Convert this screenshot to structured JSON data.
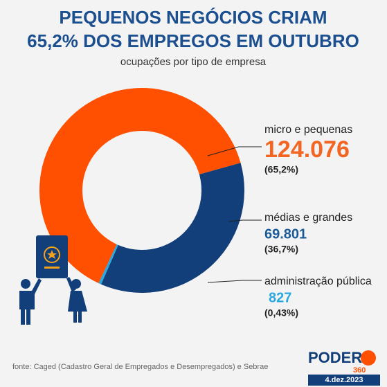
{
  "chart_data": {
    "type": "donut",
    "title": [
      "PEQUENOS NEGÓCIOS CRIAM",
      "65,2% DOS EMPREGOS EM OUTUBRO"
    ],
    "subtitle": "ocupações por tipo de empresa",
    "categories": [
      "micro e pequenas",
      "médias e grandes",
      "administração pública"
    ],
    "values": [
      124076,
      69801,
      827
    ],
    "value_labels": [
      "124.076",
      "69.801",
      "827"
    ],
    "shares": [
      {
        "value": 65.2,
        "label": "(65,2%)"
      },
      {
        "value": 36.7,
        "label": "(36,7%)"
      },
      {
        "value": 0.43,
        "label": "(0,43%)"
      }
    ],
    "colors": [
      "#fe5000",
      "#123f7a",
      "#29a8e0"
    ],
    "label_colors": [
      "#f26522",
      "#1b5a99",
      "#29a8e0"
    ],
    "source": "fonte: Caged (Cadastro Geral de Empregados e Desempregados) e Sebrae",
    "brand": "PODER",
    "brand_number": "360",
    "date": "4.dez.2023"
  }
}
